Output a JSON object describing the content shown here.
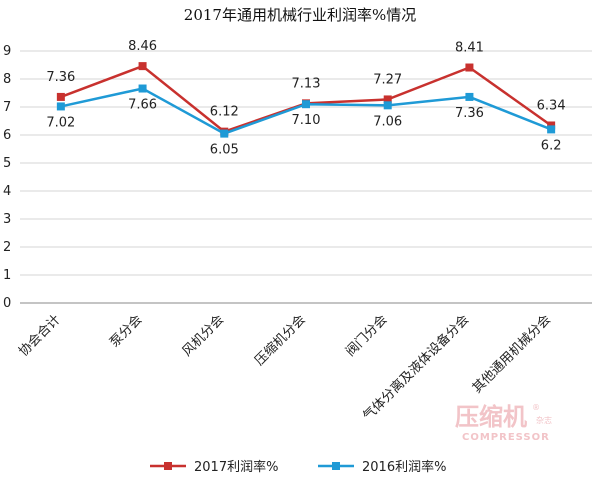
{
  "chart_data": {
    "type": "line",
    "title": "2017年通用机械行业利润率%情况",
    "categories": [
      "协会合计",
      "泵分会",
      "风机分会",
      "压缩机分会",
      "阀门分会",
      "气体分离及液体设备分会",
      "其他通用机械分会"
    ],
    "series": [
      {
        "name": "2017利润率%",
        "color": "#c8312e",
        "values": [
          7.36,
          8.46,
          6.12,
          7.13,
          7.27,
          8.41,
          6.34
        ],
        "labels": [
          "7.36",
          "8.46",
          "6.12",
          "7.13",
          "7.27",
          "8.41",
          "6.34"
        ]
      },
      {
        "name": "2016利润率%",
        "color": "#1f9ad6",
        "values": [
          7.02,
          7.66,
          6.05,
          7.1,
          7.06,
          7.36,
          6.2
        ],
        "labels": [
          "7.02",
          "7.66",
          "6.05",
          "7.10",
          "7.06",
          "7.36",
          "6.2"
        ]
      }
    ],
    "ylim": [
      0,
      9
    ],
    "yticks": [
      "0",
      "1",
      "2",
      "3",
      "4",
      "5",
      "6",
      "7",
      "8",
      "9"
    ],
    "grid": true,
    "legend_position": "bottom"
  },
  "watermark": {
    "brand_cn": "压缩机",
    "brand_side": "杂志",
    "brand_en": "COMPRESSOR",
    "mark": "®"
  }
}
